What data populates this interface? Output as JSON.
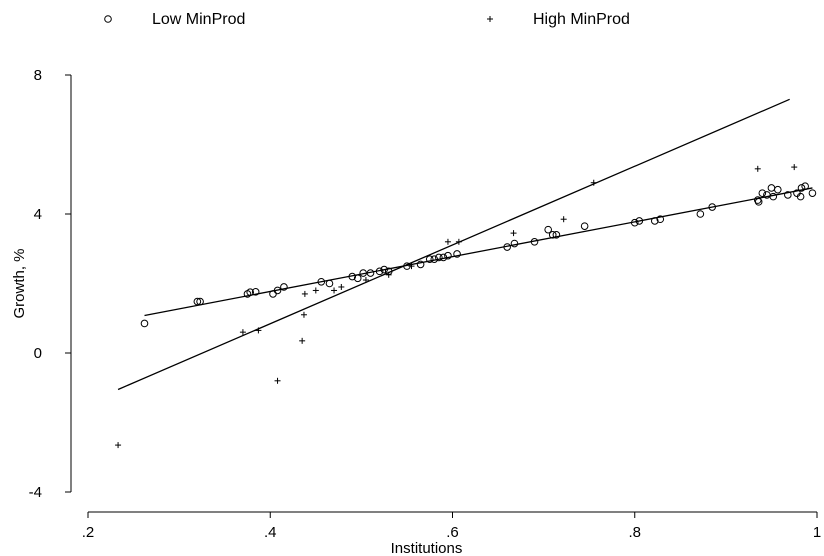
{
  "chart_data": {
    "type": "scatter",
    "xlabel": "Institutions",
    "ylabel": "Growth, %",
    "xlim": [
      0.2,
      1.0
    ],
    "ylim": [
      -4,
      8
    ],
    "x_ticks": [
      0.2,
      0.4,
      0.6,
      0.8,
      1.0
    ],
    "x_tick_labels": [
      ".2",
      ".4",
      ".6",
      ".8",
      "1"
    ],
    "y_ticks": [
      -4,
      0,
      4,
      8
    ],
    "y_tick_labels": [
      "-4",
      "0",
      "4",
      "8"
    ],
    "grid": false,
    "legend_position": "top",
    "colors": {
      "marks": "#000000",
      "background": "#ffffff"
    },
    "series": [
      {
        "name": "Low MinProd",
        "marker": "circle",
        "points": [
          [
            0.262,
            0.85
          ],
          [
            0.32,
            1.48
          ],
          [
            0.323,
            1.48
          ],
          [
            0.375,
            1.7
          ],
          [
            0.378,
            1.75
          ],
          [
            0.384,
            1.76
          ],
          [
            0.403,
            1.7
          ],
          [
            0.408,
            1.8
          ],
          [
            0.415,
            1.9
          ],
          [
            0.456,
            2.05
          ],
          [
            0.465,
            2.0
          ],
          [
            0.49,
            2.2
          ],
          [
            0.496,
            2.15
          ],
          [
            0.502,
            2.3
          ],
          [
            0.51,
            2.3
          ],
          [
            0.52,
            2.35
          ],
          [
            0.525,
            2.4
          ],
          [
            0.53,
            2.35
          ],
          [
            0.55,
            2.5
          ],
          [
            0.565,
            2.55
          ],
          [
            0.575,
            2.7
          ],
          [
            0.58,
            2.7
          ],
          [
            0.585,
            2.75
          ],
          [
            0.59,
            2.75
          ],
          [
            0.595,
            2.8
          ],
          [
            0.605,
            2.85
          ],
          [
            0.66,
            3.05
          ],
          [
            0.668,
            3.15
          ],
          [
            0.69,
            3.2
          ],
          [
            0.705,
            3.55
          ],
          [
            0.71,
            3.4
          ],
          [
            0.714,
            3.4
          ],
          [
            0.745,
            3.65
          ],
          [
            0.8,
            3.75
          ],
          [
            0.805,
            3.8
          ],
          [
            0.822,
            3.8
          ],
          [
            0.828,
            3.85
          ],
          [
            0.872,
            4.0
          ],
          [
            0.885,
            4.2
          ],
          [
            0.935,
            4.4
          ],
          [
            0.936,
            4.35
          ],
          [
            0.94,
            4.6
          ],
          [
            0.945,
            4.55
          ],
          [
            0.95,
            4.75
          ],
          [
            0.952,
            4.5
          ],
          [
            0.957,
            4.7
          ],
          [
            0.968,
            4.55
          ],
          [
            0.978,
            4.6
          ],
          [
            0.982,
            4.5
          ],
          [
            0.983,
            4.75
          ],
          [
            0.987,
            4.8
          ],
          [
            0.995,
            4.6
          ]
        ],
        "fit": {
          "x": [
            0.262,
            0.995
          ],
          "y": [
            1.08,
            4.75
          ]
        }
      },
      {
        "name": "High MinProd",
        "marker": "plus",
        "points": [
          [
            0.233,
            -2.65
          ],
          [
            0.37,
            0.6
          ],
          [
            0.387,
            0.65
          ],
          [
            0.408,
            -0.8
          ],
          [
            0.435,
            0.35
          ],
          [
            0.437,
            1.1
          ],
          [
            0.438,
            1.7
          ],
          [
            0.45,
            1.8
          ],
          [
            0.47,
            1.8
          ],
          [
            0.478,
            1.9
          ],
          [
            0.505,
            2.1
          ],
          [
            0.53,
            2.25
          ],
          [
            0.555,
            2.5
          ],
          [
            0.595,
            3.2
          ],
          [
            0.607,
            3.2
          ],
          [
            0.667,
            3.45
          ],
          [
            0.722,
            3.85
          ],
          [
            0.755,
            4.9
          ],
          [
            0.935,
            5.3
          ],
          [
            0.975,
            5.35
          ]
        ],
        "fit": {
          "x": [
            0.233,
            0.97
          ],
          "y": [
            -1.05,
            7.3
          ]
        }
      }
    ]
  }
}
